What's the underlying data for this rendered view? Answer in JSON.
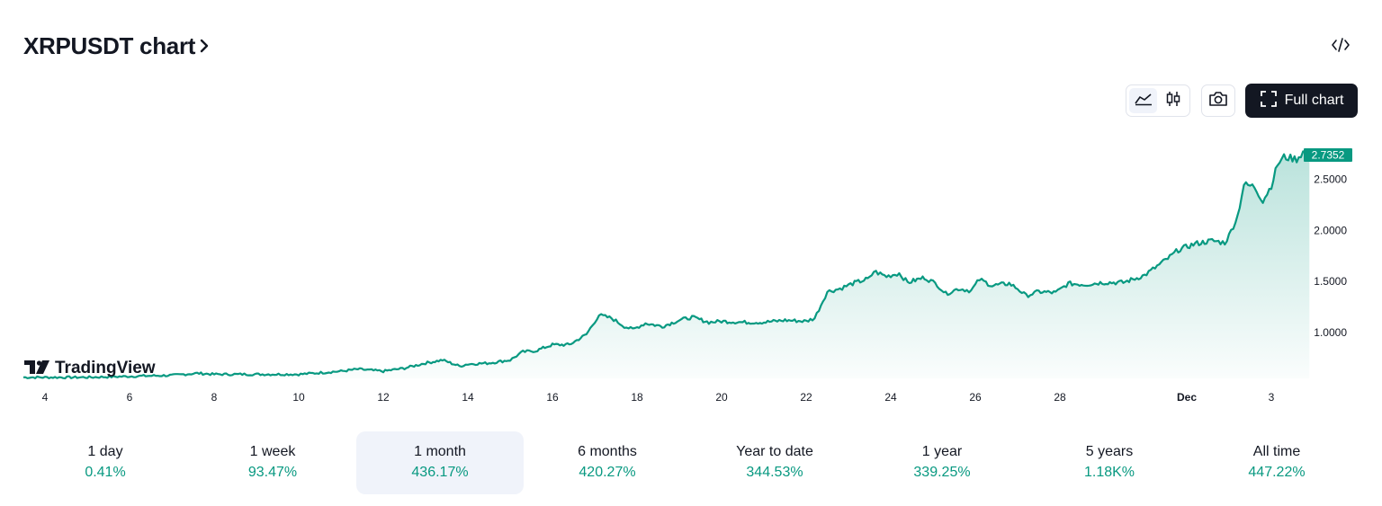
{
  "header": {
    "title": "XRPUSDT chart",
    "title_chevron_icon": "chevron-right-icon",
    "embed_icon": "code-embed-icon"
  },
  "toolbar": {
    "line_chart_icon": "area-chart-icon",
    "candle_chart_icon": "candlestick-icon",
    "screenshot_icon": "camera-icon",
    "full_chart_icon": "fullscreen-icon",
    "full_chart_label": "Full chart",
    "active_style": "line"
  },
  "watermark": {
    "text": "TradingView",
    "logo_icon": "tradingview-logo-icon"
  },
  "colors": {
    "line": "#089981",
    "price_badge": "#089981",
    "dark_button": "#131722",
    "positive": "#089981"
  },
  "chart_data": {
    "type": "area",
    "symbol": "XRPUSDT",
    "last_price": "2.7352",
    "y_ticks": [
      "2.5000",
      "2.0000",
      "1.5000",
      "1.0000"
    ],
    "y_tick_values": [
      2.5,
      2.0,
      1.5,
      1.0
    ],
    "ylim": [
      0.55,
      2.85
    ],
    "x_ticks": [
      {
        "label": "4",
        "day": 4
      },
      {
        "label": "6",
        "day": 6
      },
      {
        "label": "8",
        "day": 8
      },
      {
        "label": "10",
        "day": 10
      },
      {
        "label": "12",
        "day": 12
      },
      {
        "label": "14",
        "day": 14
      },
      {
        "label": "16",
        "day": 16
      },
      {
        "label": "18",
        "day": 18
      },
      {
        "label": "20",
        "day": 20
      },
      {
        "label": "22",
        "day": 22
      },
      {
        "label": "24",
        "day": 24
      },
      {
        "label": "26",
        "day": 26
      },
      {
        "label": "28",
        "day": 28
      },
      {
        "label": "Dec",
        "day": 31,
        "bold": true
      },
      {
        "label": "3",
        "day": 33
      }
    ],
    "x_unit": "day (Nov = 1–30, Dec 1 = 31)",
    "points": [
      [
        3.0,
        0.56
      ],
      [
        4.0,
        0.56
      ],
      [
        5.0,
        0.56
      ],
      [
        6.0,
        0.57
      ],
      [
        7.0,
        0.58
      ],
      [
        7.6,
        0.6
      ],
      [
        8.0,
        0.59
      ],
      [
        9.0,
        0.59
      ],
      [
        10.0,
        0.59
      ],
      [
        11.0,
        0.62
      ],
      [
        11.4,
        0.64
      ],
      [
        12.0,
        0.62
      ],
      [
        12.5,
        0.65
      ],
      [
        13.0,
        0.7
      ],
      [
        13.4,
        0.73
      ],
      [
        13.8,
        0.67
      ],
      [
        14.0,
        0.69
      ],
      [
        14.5,
        0.7
      ],
      [
        15.0,
        0.73
      ],
      [
        15.3,
        0.81
      ],
      [
        15.6,
        0.82
      ],
      [
        16.0,
        0.88
      ],
      [
        16.4,
        0.88
      ],
      [
        16.8,
        0.98
      ],
      [
        17.1,
        1.17
      ],
      [
        17.4,
        1.14
      ],
      [
        17.7,
        1.06
      ],
      [
        17.9,
        1.03
      ],
      [
        18.2,
        1.09
      ],
      [
        18.6,
        1.06
      ],
      [
        19.0,
        1.12
      ],
      [
        19.3,
        1.15
      ],
      [
        19.7,
        1.1
      ],
      [
        20.0,
        1.11
      ],
      [
        20.5,
        1.1
      ],
      [
        21.0,
        1.1
      ],
      [
        21.5,
        1.12
      ],
      [
        22.0,
        1.11
      ],
      [
        22.2,
        1.14
      ],
      [
        22.5,
        1.4
      ],
      [
        22.8,
        1.43
      ],
      [
        23.1,
        1.48
      ],
      [
        23.5,
        1.53
      ],
      [
        23.6,
        1.6
      ],
      [
        23.9,
        1.55
      ],
      [
        24.2,
        1.58
      ],
      [
        24.4,
        1.49
      ],
      [
        24.8,
        1.54
      ],
      [
        25.1,
        1.47
      ],
      [
        25.3,
        1.38
      ],
      [
        25.6,
        1.43
      ],
      [
        25.9,
        1.41
      ],
      [
        26.1,
        1.52
      ],
      [
        26.4,
        1.46
      ],
      [
        26.8,
        1.48
      ],
      [
        27.0,
        1.43
      ],
      [
        27.2,
        1.36
      ],
      [
        27.5,
        1.4
      ],
      [
        27.9,
        1.39
      ],
      [
        28.2,
        1.48
      ],
      [
        28.6,
        1.47
      ],
      [
        29.0,
        1.49
      ],
      [
        29.5,
        1.49
      ],
      [
        30.0,
        1.56
      ],
      [
        30.3,
        1.65
      ],
      [
        30.6,
        1.74
      ],
      [
        30.8,
        1.81
      ],
      [
        31.2,
        1.87
      ],
      [
        31.6,
        1.9
      ],
      [
        31.9,
        1.88
      ],
      [
        32.0,
        1.95
      ],
      [
        32.2,
        2.14
      ],
      [
        32.35,
        2.45
      ],
      [
        32.6,
        2.43
      ],
      [
        32.8,
        2.29
      ],
      [
        33.0,
        2.44
      ],
      [
        33.15,
        2.65
      ],
      [
        33.3,
        2.72
      ],
      [
        33.6,
        2.7
      ],
      [
        33.75,
        2.77
      ],
      [
        33.9,
        2.7352
      ]
    ]
  },
  "periods": [
    {
      "label": "1 day",
      "value": "0.41%"
    },
    {
      "label": "1 week",
      "value": "93.47%"
    },
    {
      "label": "1 month",
      "value": "436.17%",
      "active": true
    },
    {
      "label": "6 months",
      "value": "420.27%"
    },
    {
      "label": "Year to date",
      "value": "344.53%"
    },
    {
      "label": "1 year",
      "value": "339.25%"
    },
    {
      "label": "5 years",
      "value": "1.18K%"
    },
    {
      "label": "All time",
      "value": "447.22%"
    }
  ]
}
